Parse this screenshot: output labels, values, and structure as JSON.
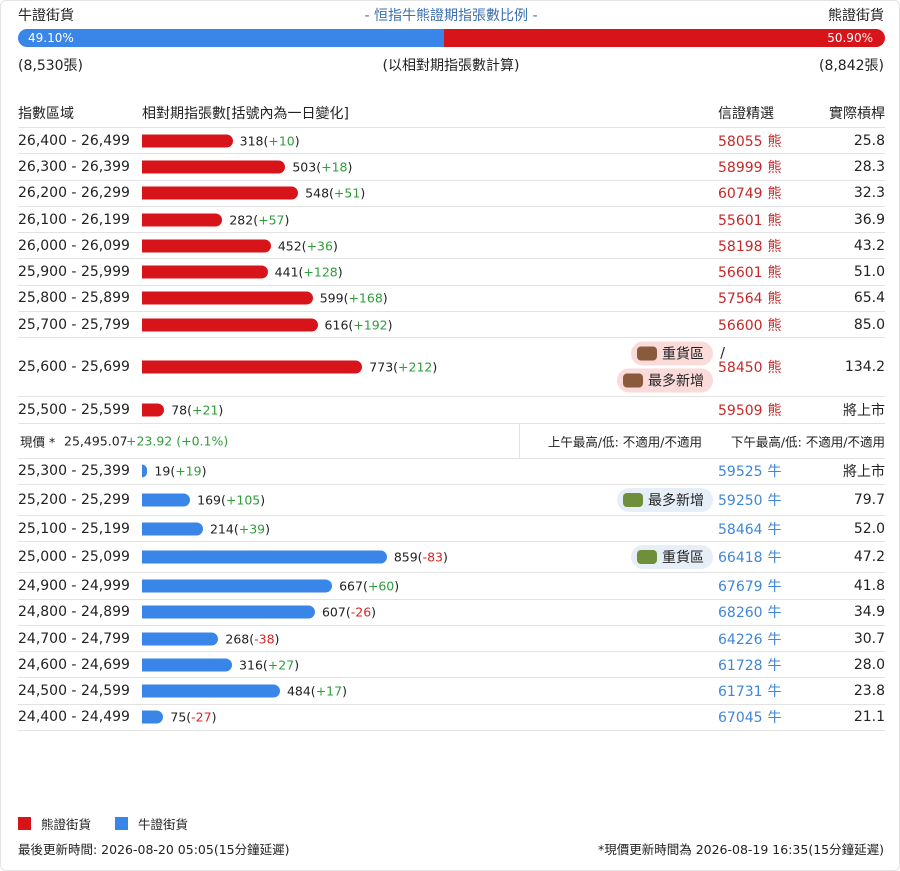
{
  "header": {
    "bull_label": "牛證街貨",
    "title": "- 恒指牛熊證期指張數比例 -",
    "bear_label": "熊證街貨",
    "bull_count": "(8,530張)",
    "note": "(以相對期指張數計算)",
    "bear_count": "(8,842張)"
  },
  "ratio": {
    "bull": 49.1,
    "bull_label": "49.10%",
    "bear": 50.9,
    "bear_label": "50.90%"
  },
  "columns": [
    "指數區域",
    "相對期指張數[括號內為一日變化]",
    "信證精選",
    "實際槓桿"
  ],
  "bear_rows": [
    {
      "range": "26,400 - 26,499",
      "contracts": 318,
      "change": "+10",
      "code": "58055",
      "side": "熊",
      "leverage": "25.8"
    },
    {
      "range": "26,300 - 26,399",
      "contracts": 503,
      "change": "+18",
      "code": "58999",
      "side": "熊",
      "leverage": "28.3"
    },
    {
      "range": "26,200 - 26,299",
      "contracts": 548,
      "change": "+51",
      "code": "60749",
      "side": "熊",
      "leverage": "32.3"
    },
    {
      "range": "26,100 - 26,199",
      "contracts": 282,
      "change": "+57",
      "code": "55601",
      "side": "熊",
      "leverage": "36.9"
    },
    {
      "range": "26,000 - 26,099",
      "contracts": 452,
      "change": "+36",
      "code": "58198",
      "side": "熊",
      "leverage": "43.2"
    },
    {
      "range": "25,900 - 25,999",
      "contracts": 441,
      "change": "+128",
      "code": "56601",
      "side": "熊",
      "leverage": "51.0"
    },
    {
      "range": "25,800 - 25,899",
      "contracts": 599,
      "change": "+168",
      "code": "57564",
      "side": "熊",
      "leverage": "65.4"
    },
    {
      "range": "25,700 - 25,799",
      "contracts": 616,
      "change": "+192",
      "code": "56600",
      "side": "熊",
      "leverage": "85.0"
    },
    {
      "range": "25,600 - 25,699",
      "contracts": 773,
      "change": "+212",
      "code": "58450",
      "side": "熊",
      "leverage": "134.2",
      "badges": [
        "重貨區",
        "最多新增"
      ],
      "badge_separator": "/"
    },
    {
      "range": "25,500 - 25,599",
      "contracts": 78,
      "change": "+21",
      "code": "59509",
      "side": "熊",
      "leverage": "將上市"
    }
  ],
  "current": {
    "label": "現價 *",
    "price": "25,495.07",
    "change": "+23.92 (+0.1%)",
    "am": "上午最高/低: 不適用/不適用",
    "pm": "下午最高/低: 不適用/不適用"
  },
  "bull_rows": [
    {
      "range": "25,300 - 25,399",
      "contracts": 19,
      "change": "+19",
      "code": "59525",
      "side": "牛",
      "leverage": "將上市"
    },
    {
      "range": "25,200 - 25,299",
      "contracts": 169,
      "change": "+105",
      "code": "59250",
      "side": "牛",
      "leverage": "79.7",
      "badges": [
        "最多新增"
      ]
    },
    {
      "range": "25,100 - 25,199",
      "contracts": 214,
      "change": "+39",
      "code": "58464",
      "side": "牛",
      "leverage": "52.0"
    },
    {
      "range": "25,000 - 25,099",
      "contracts": 859,
      "change": "-83",
      "code": "66418",
      "side": "牛",
      "leverage": "47.2",
      "badges": [
        "重貨區"
      ]
    },
    {
      "range": "24,900 - 24,999",
      "contracts": 667,
      "change": "+60",
      "code": "67679",
      "side": "牛",
      "leverage": "41.8"
    },
    {
      "range": "24,800 - 24,899",
      "contracts": 607,
      "change": "-26",
      "code": "68260",
      "side": "牛",
      "leverage": "34.9"
    },
    {
      "range": "24,700 - 24,799",
      "contracts": 268,
      "change": "-38",
      "code": "64226",
      "side": "牛",
      "leverage": "30.7"
    },
    {
      "range": "24,600 - 24,699",
      "contracts": 316,
      "change": "+27",
      "code": "61728",
      "side": "牛",
      "leverage": "28.0"
    },
    {
      "range": "24,500 - 24,599",
      "contracts": 484,
      "change": "+17",
      "code": "61731",
      "side": "牛",
      "leverage": "23.8"
    },
    {
      "range": "24,400 - 24,499",
      "contracts": 75,
      "change": "-27",
      "code": "67045",
      "side": "牛",
      "leverage": "21.1"
    }
  ],
  "legend": [
    {
      "label": "熊證街貨",
      "color": "#d7141a"
    },
    {
      "label": "牛證街貨",
      "color": "#3a86e8"
    }
  ],
  "footer": {
    "updated": "最後更新時間: 2026-08-20 05:05(15分鐘延遲)",
    "price_updated": "*現價更新時間為 2026-08-19 16:35(15分鐘延遲)"
  }
}
